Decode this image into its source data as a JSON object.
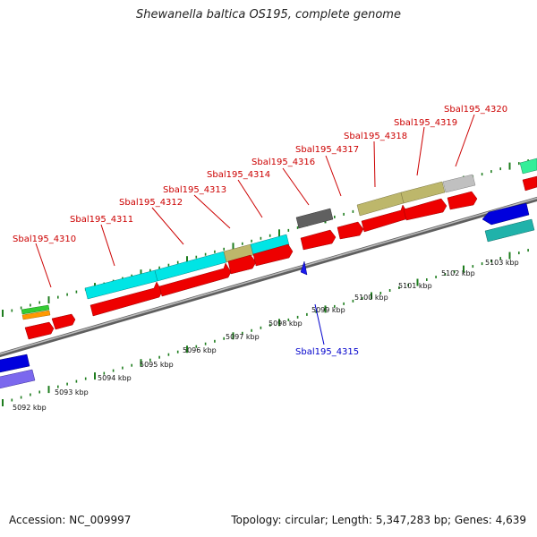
{
  "title": "Shewanella baltica OS195, complete genome",
  "footer": {
    "accession": "Accession: NC_009997",
    "topology": "Topology: circular; Length: 5,347,283 bp; Genes: 4,639"
  },
  "colors": {
    "red": "#ee0000",
    "cyan": "#00e5e5",
    "khaki": "#bdb76b",
    "gray_dark": "#606060",
    "gray_light": "#c0c0c0",
    "blue": "#0000dd",
    "slate": "#7b68ee",
    "teal": "#20b2aa",
    "green": "#33cc33",
    "orange": "#ff9900",
    "backbone": "#8a8a8a",
    "tick": "#1e7d1e",
    "gene_label": "#cc0000",
    "gene_label_reverse": "#0000cc"
  },
  "scale_labels": [
    "5092 kbp",
    "5093 kbp",
    "5094 kbp",
    "5095 kbp",
    "5096 kbp",
    "5097 kbp",
    "5098 kbp",
    "5099 kbp",
    "5100 kbp",
    "5101 kbp",
    "5102 kbp",
    "5103 kbp"
  ],
  "gene_labels": [
    "Sbal195_4310",
    "Sbal195_4311",
    "Sbal195_4312",
    "Sbal195_4313",
    "Sbal195_4314",
    "Sbal195_4316",
    "Sbal195_4317",
    "Sbal195_4318",
    "Sbal195_4319",
    "Sbal195_4320"
  ],
  "reverse_gene_labels": [
    "Sbal195_4315"
  ]
}
